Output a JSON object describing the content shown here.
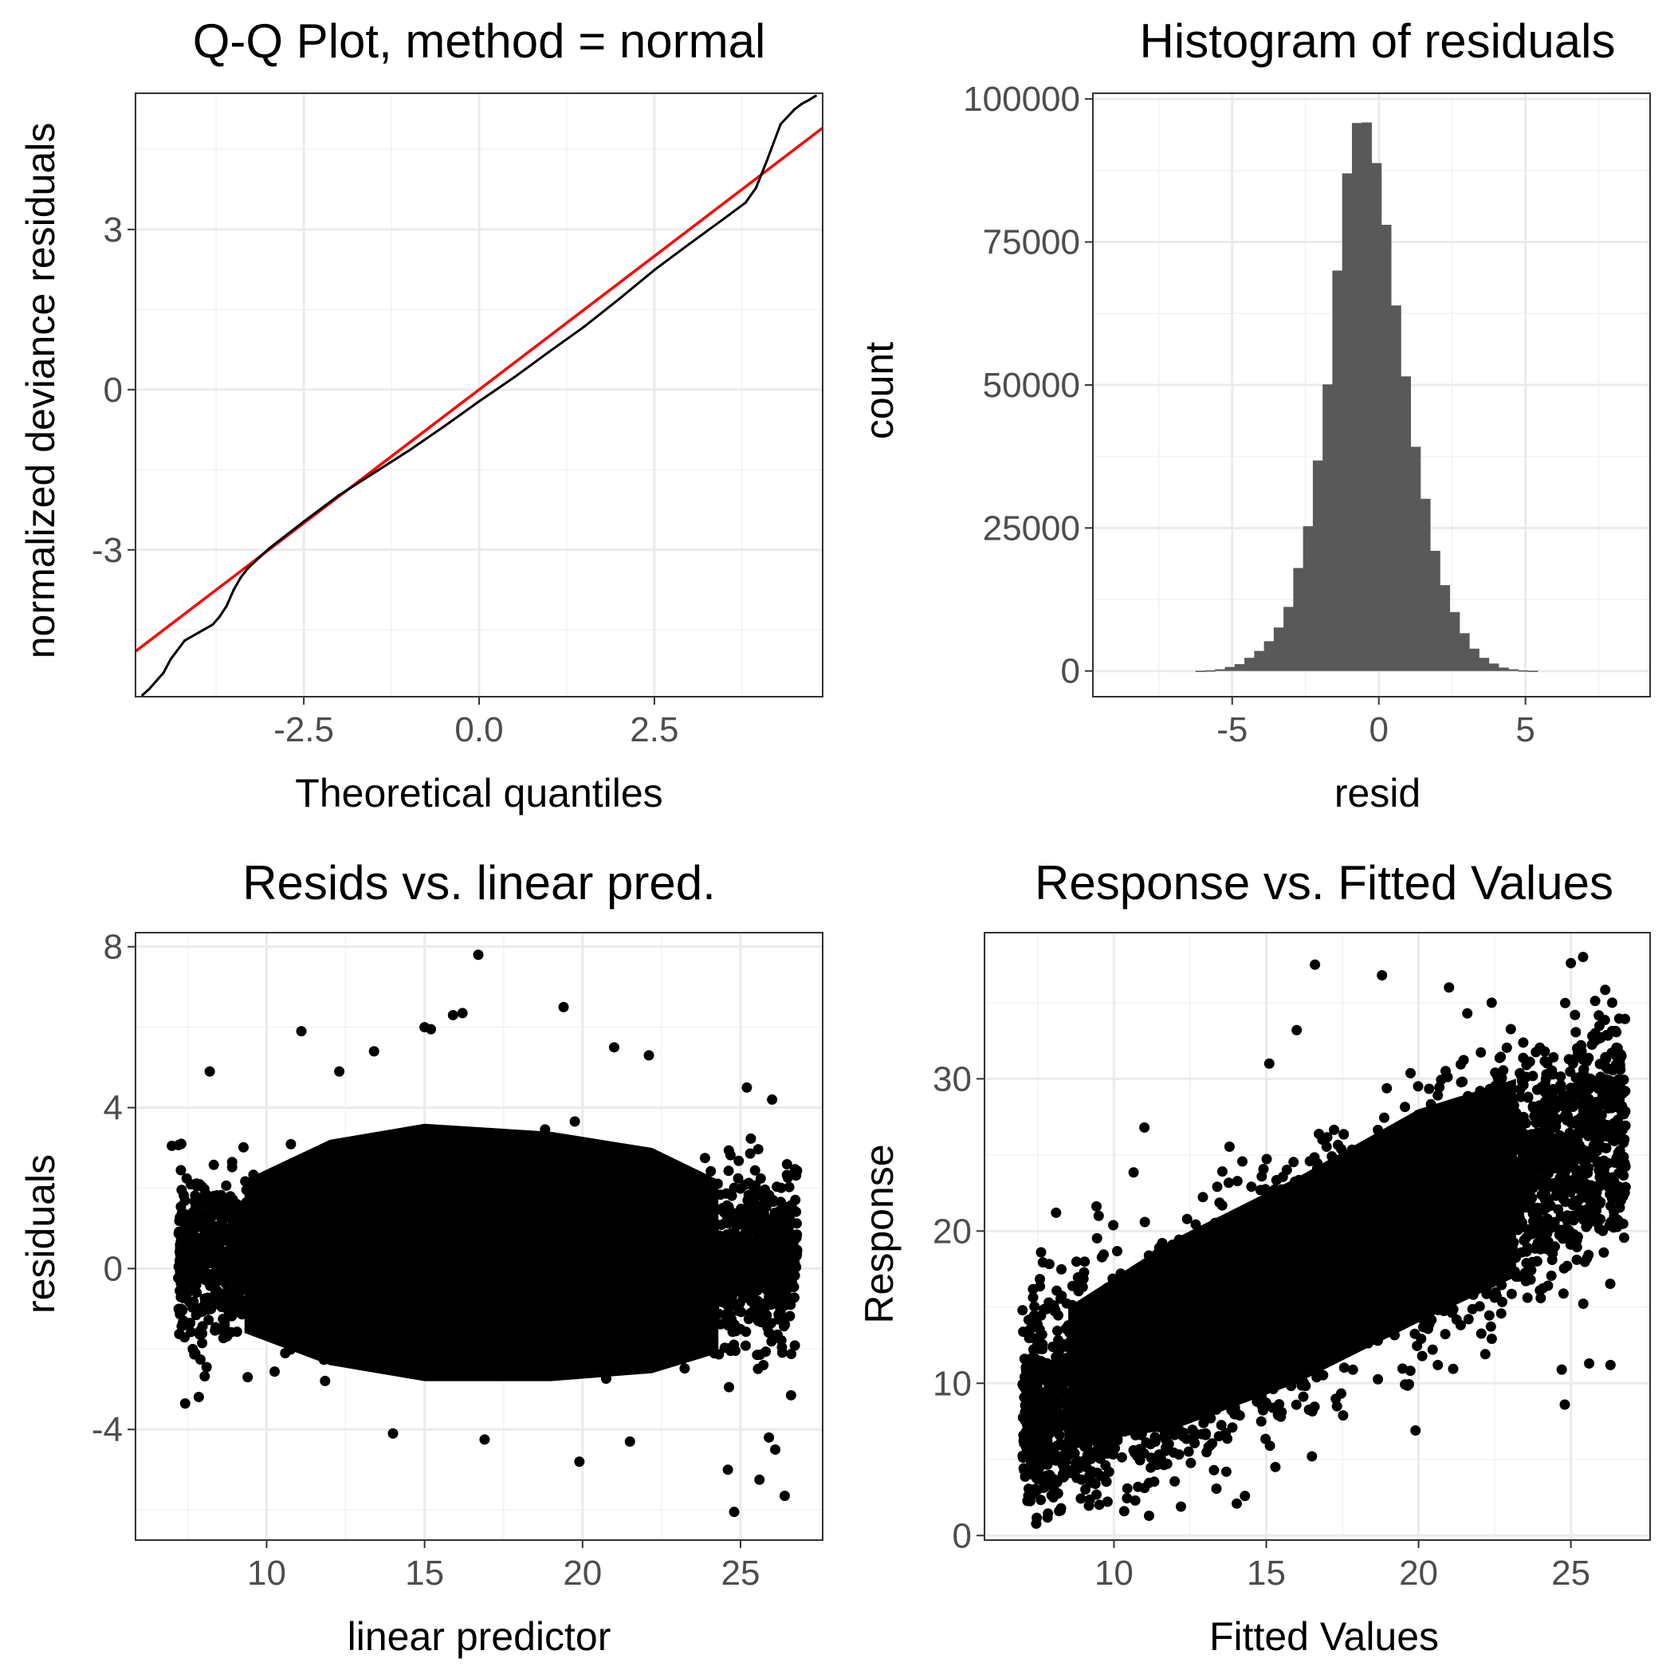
{
  "chart_data": [
    {
      "type": "scatter",
      "title": "Q-Q Plot, method = normal",
      "xlabel": "Theoretical quantiles",
      "ylabel": "normalized deviance residuals",
      "xlim": [
        -4.9,
        4.9
      ],
      "ylim": [
        -5.75,
        5.55
      ],
      "xticks": [
        -2.5,
        0.0,
        2.5
      ],
      "xtick_labels": [
        "-2.5",
        "0.0",
        "2.5"
      ],
      "xminor": [
        -3.75,
        -1.25,
        1.25,
        3.75
      ],
      "yticks": [
        -3,
        0,
        3
      ],
      "ytick_labels": [
        "-3",
        "0",
        "3"
      ],
      "yminor": [
        -4.5,
        -1.5,
        1.5,
        4.5
      ],
      "grid": true,
      "points": [
        [
          -4.8,
          -5.72
        ],
        [
          -4.7,
          -5.6
        ],
        [
          -4.6,
          -5.45
        ],
        [
          -4.5,
          -5.3
        ],
        [
          -4.4,
          -5.05
        ],
        [
          -4.2,
          -4.7
        ],
        [
          -4.0,
          -4.55
        ],
        [
          -3.8,
          -4.4
        ],
        [
          -3.7,
          -4.25
        ],
        [
          -3.6,
          -4.05
        ],
        [
          -3.5,
          -3.75
        ],
        [
          -3.4,
          -3.52
        ],
        [
          -3.3,
          -3.35
        ],
        [
          -3.0,
          -2.98
        ],
        [
          -2.5,
          -2.47
        ],
        [
          -2.0,
          -1.98
        ],
        [
          -1.5,
          -1.56
        ],
        [
          -1.0,
          -1.14
        ],
        [
          -0.5,
          -0.69
        ],
        [
          0.0,
          -0.22
        ],
        [
          0.5,
          0.23
        ],
        [
          1.0,
          0.71
        ],
        [
          1.5,
          1.18
        ],
        [
          2.0,
          1.7
        ],
        [
          2.5,
          2.24
        ],
        [
          3.0,
          2.73
        ],
        [
          3.5,
          3.21
        ],
        [
          3.8,
          3.5
        ],
        [
          3.95,
          3.78
        ],
        [
          4.1,
          4.27
        ],
        [
          4.3,
          4.97
        ],
        [
          4.5,
          5.25
        ],
        [
          4.6,
          5.35
        ],
        [
          4.7,
          5.42
        ],
        [
          4.8,
          5.5
        ]
      ],
      "reference_line": {
        "intercept": 0.0,
        "slope": 1.0,
        "color": "#ff0000"
      }
    },
    {
      "type": "bar",
      "title": "Histogram of residuals",
      "xlabel": "resid",
      "ylabel": "count",
      "xlim": [
        -9.75,
        9.25
      ],
      "ylim": [
        -4500,
        101000
      ],
      "xticks": [
        -5,
        0,
        5
      ],
      "xtick_labels": [
        "-5",
        "0",
        "5"
      ],
      "xminor": [
        -7.5,
        -2.5,
        2.5,
        7.5
      ],
      "yticks": [
        0,
        25000,
        50000,
        75000,
        100000
      ],
      "ytick_labels": [
        "0",
        "25000",
        "50000",
        "75000",
        "100000"
      ],
      "yminor": [
        12500,
        37500,
        62500,
        87500
      ],
      "grid": true,
      "bar_color": "#595959",
      "bin_start": -6.25,
      "bin_width": 0.3333,
      "counts": [
        30,
        100,
        300,
        700,
        1200,
        2300,
        3500,
        5200,
        7600,
        11200,
        18000,
        25300,
        36800,
        50100,
        70000,
        87000,
        95800,
        95900,
        88800,
        78000,
        63900,
        51500,
        39200,
        30100,
        21000,
        15000,
        10300,
        6600,
        3900,
        2300,
        1300,
        600,
        300,
        100,
        30
      ]
    },
    {
      "type": "scatter",
      "title": "Resids vs. linear pred.",
      "xlabel": "linear predictor",
      "ylabel": "residuals",
      "xlim": [
        5.85,
        27.6
      ],
      "ylim": [
        -6.75,
        8.35
      ],
      "xticks": [
        10,
        15,
        20,
        25
      ],
      "xtick_labels": [
        "10",
        "15",
        "20",
        "25"
      ],
      "xminor": [
        7.5,
        12.5,
        17.5,
        22.5
      ],
      "yticks": [
        -4,
        0,
        4,
        8
      ],
      "ytick_labels": [
        "-4",
        "0",
        "4",
        "8"
      ],
      "yminor": [
        -6,
        -2,
        2,
        6
      ],
      "grid": true,
      "outliers": [
        [
          16.7,
          7.8
        ],
        [
          19.4,
          6.5
        ],
        [
          15.9,
          6.3
        ],
        [
          16.2,
          6.35
        ],
        [
          11.1,
          5.9
        ],
        [
          15.0,
          6.0
        ],
        [
          15.2,
          5.95
        ],
        [
          8.2,
          4.9
        ],
        [
          21.0,
          5.5
        ],
        [
          13.4,
          5.4
        ],
        [
          24.8,
          -6.05
        ],
        [
          25.6,
          -5.25
        ],
        [
          26.4,
          -5.65
        ],
        [
          24.6,
          -5.0
        ],
        [
          25.9,
          -4.2
        ],
        [
          26.1,
          -4.5
        ],
        [
          19.9,
          -4.8
        ],
        [
          16.9,
          -4.25
        ],
        [
          14.0,
          -4.1
        ],
        [
          21.5,
          -4.3
        ],
        [
          7.0,
          3.05
        ],
        [
          7.3,
          3.1
        ],
        [
          8.1,
          -2.45
        ],
        [
          9.4,
          -2.7
        ],
        [
          26.6,
          -3.15
        ],
        [
          25.2,
          4.5
        ],
        [
          26.0,
          4.2
        ],
        [
          22.1,
          5.3
        ],
        [
          12.3,
          4.9
        ]
      ]
    },
    {
      "type": "scatter",
      "title": "Response vs. Fitted Values",
      "xlabel": "Fitted Values",
      "ylabel": "Response",
      "xlim": [
        5.75,
        27.6
      ],
      "ylim": [
        -0.3,
        39.6
      ],
      "xticks": [
        10,
        15,
        20,
        25
      ],
      "xtick_labels": [
        "10",
        "15",
        "20",
        "25"
      ],
      "xminor": [
        7.5,
        12.5,
        17.5,
        22.5
      ],
      "yticks": [
        0,
        10,
        20,
        30
      ],
      "ytick_labels": [
        "0",
        "10",
        "20",
        "30"
      ],
      "yminor": [
        5,
        15,
        25,
        35
      ],
      "grid": true,
      "outliers": [
        [
          16.6,
          37.5
        ],
        [
          18.8,
          36.8
        ],
        [
          25.4,
          38.0
        ],
        [
          25.0,
          37.6
        ],
        [
          21.0,
          36.0
        ],
        [
          11.0,
          26.8
        ],
        [
          8.2,
          1.6
        ],
        [
          10.7,
          2.3
        ],
        [
          14.3,
          2.6
        ],
        [
          24.8,
          8.6
        ],
        [
          26.3,
          11.2
        ],
        [
          25.6,
          11.3
        ],
        [
          24.7,
          10.9
        ],
        [
          19.9,
          6.9
        ],
        [
          16.5,
          5.2
        ],
        [
          15.3,
          4.5
        ],
        [
          12.2,
          1.9
        ],
        [
          7.0,
          14.8
        ],
        [
          8.1,
          21.2
        ],
        [
          9.5,
          21.0
        ],
        [
          16.0,
          33.2
        ],
        [
          15.1,
          31.0
        ],
        [
          21.6,
          34.3
        ],
        [
          22.4,
          35.0
        ],
        [
          25.8,
          33.0
        ]
      ]
    }
  ]
}
